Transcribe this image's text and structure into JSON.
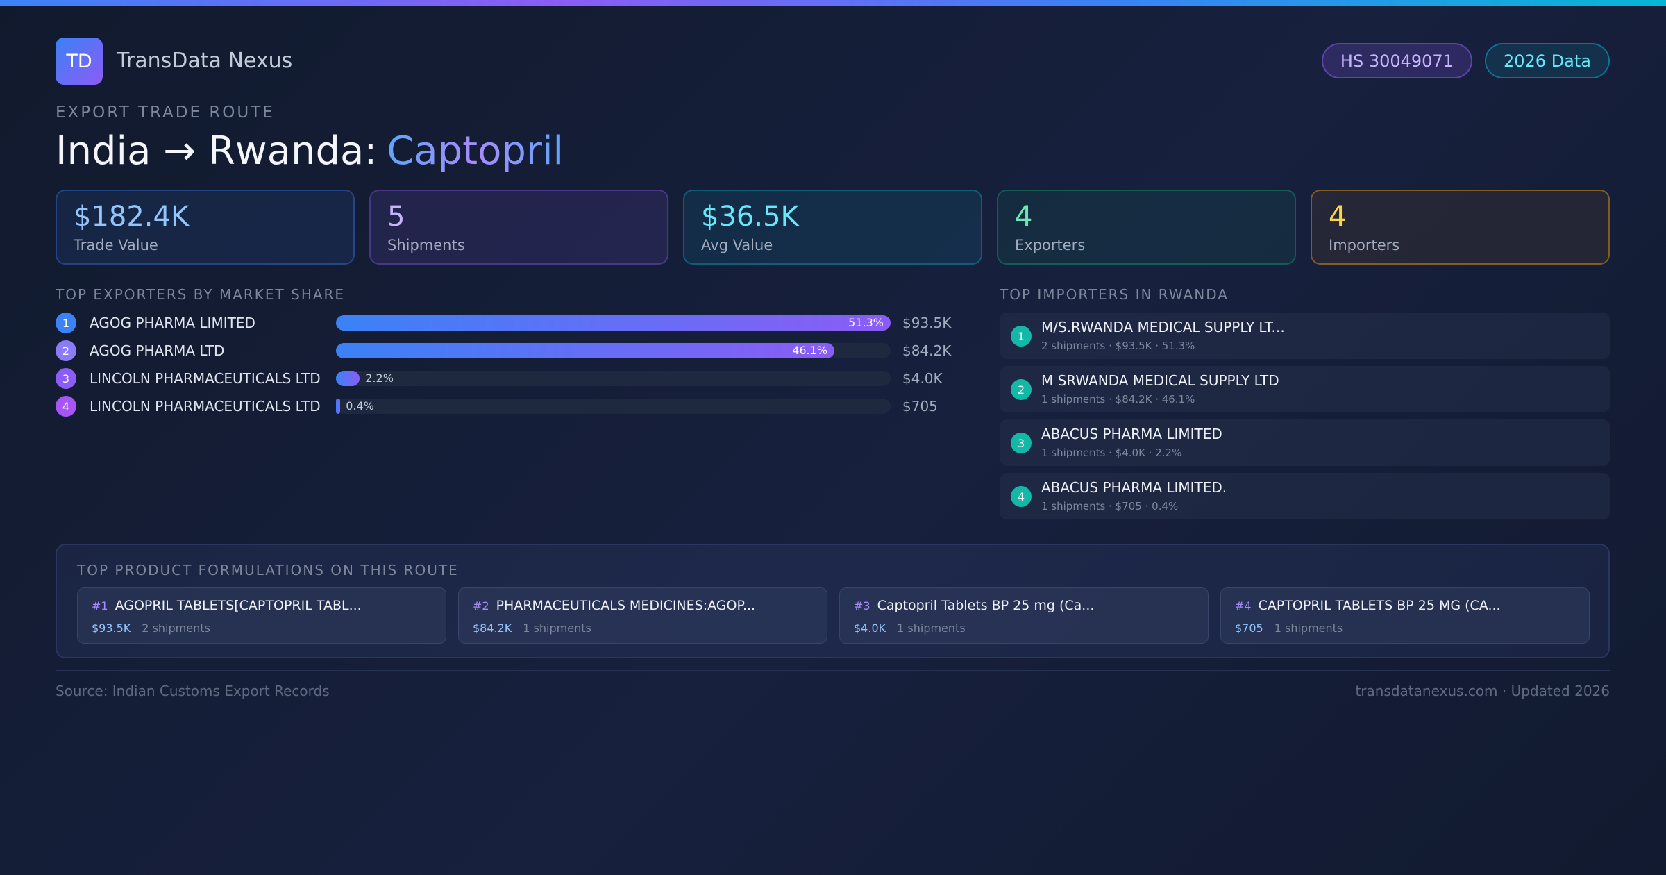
{
  "header": {
    "logo": "TD",
    "brand": "TransData Nexus",
    "badges": [
      "HS 30049071",
      "2026 Data"
    ],
    "eyebrow": "EXPORT TRADE ROUTE",
    "title": "India → Rwanda:",
    "product": "Captopril"
  },
  "kpis": [
    {
      "value": "$182.4K",
      "label": "Trade Value"
    },
    {
      "value": 5,
      "label": "Shipments"
    },
    {
      "value": "$36.5K",
      "label": "Avg Value"
    },
    {
      "value": 4,
      "label": "Exporters"
    },
    {
      "value": 4,
      "label": "Importers"
    }
  ],
  "exporters": {
    "heading": "TOP EXPORTERS BY MARKET SHARE",
    "items": [
      {
        "rank": 1,
        "name": "AGOG PHARMA LIMITED",
        "share": 51.3,
        "share_label": "51.3%",
        "value": "$93.5K"
      },
      {
        "rank": 2,
        "name": "AGOG PHARMA LTD",
        "share": 46.1,
        "share_label": "46.1%",
        "value": "$84.2K"
      },
      {
        "rank": 3,
        "name": "LINCOLN PHARMACEUTICALS LTD",
        "share": 2.2,
        "share_label": "2.2%",
        "value": "$4.0K"
      },
      {
        "rank": 4,
        "name": "LINCOLN PHARMACEUTICALS LTD",
        "share": 0.4,
        "share_label": "0.4%",
        "value": "$705"
      }
    ]
  },
  "importers": {
    "heading": "TOP IMPORTERS IN RWANDA",
    "items": [
      {
        "rank": 1,
        "name": "M/S.RWANDA MEDICAL SUPPLY LT...",
        "detail": "2 shipments · $93.5K · 51.3%"
      },
      {
        "rank": 2,
        "name": "M SRWANDA MEDICAL SUPPLY LTD",
        "detail": "1 shipments · $84.2K · 46.1%"
      },
      {
        "rank": 3,
        "name": "ABACUS PHARMA LIMITED",
        "detail": "1 shipments · $4.0K · 2.2%"
      },
      {
        "rank": 4,
        "name": "ABACUS PHARMA LIMITED.",
        "detail": "1 shipments · $705 · 0.4%"
      }
    ]
  },
  "products": {
    "heading": "TOP PRODUCT FORMULATIONS ON THIS ROUTE",
    "items": [
      {
        "rank": "#1",
        "name": "AGOPRIL TABLETS[CAPTOPRIL TABL...",
        "value": "$93.5K",
        "shipments": "2 shipments"
      },
      {
        "rank": "#2",
        "name": "PHARMACEUTICALS MEDICINES:AGOP...",
        "value": "$84.2K",
        "shipments": "1 shipments"
      },
      {
        "rank": "#3",
        "name": "Captopril Tablets BP 25 mg (Ca...",
        "value": "$4.0K",
        "shipments": "1 shipments"
      },
      {
        "rank": "#4",
        "name": "CAPTOPRIL TABLETS BP 25 MG (CA...",
        "value": "$705",
        "shipments": "1 shipments"
      }
    ]
  },
  "footer": {
    "source": "Source: Indian Customs Export Records",
    "site": "transdatanexus.com · Updated 2026"
  }
}
